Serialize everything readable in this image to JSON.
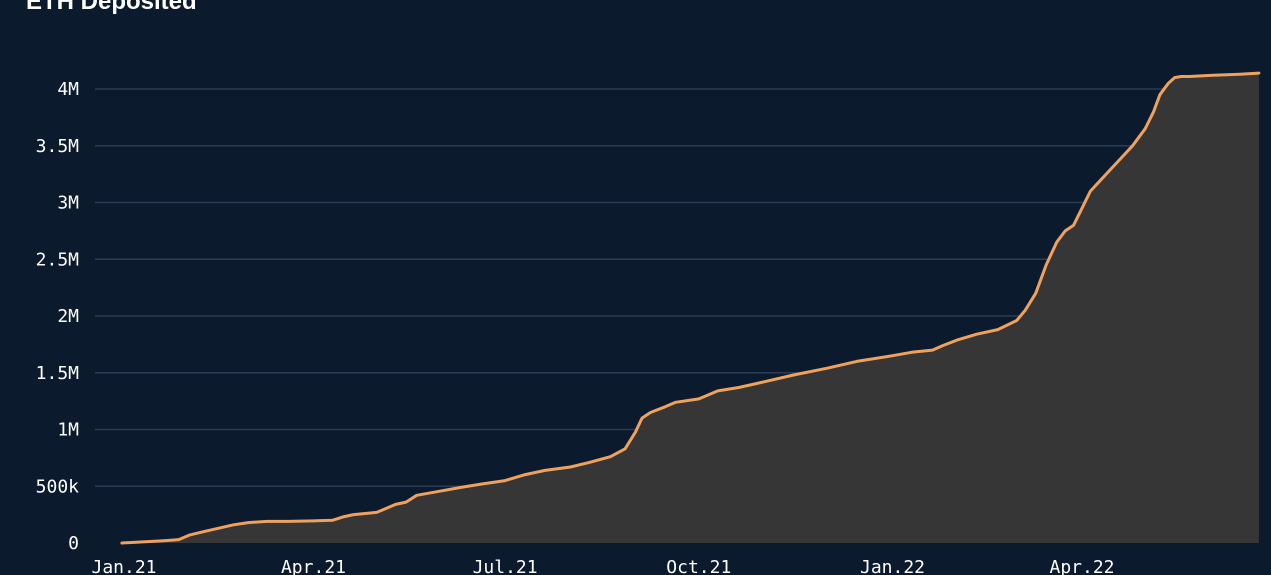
{
  "chart_data": {
    "type": "area",
    "title": "ETH Deposited",
    "xlabel": "",
    "ylabel": "",
    "ylim": [
      0,
      4000000
    ],
    "grid": true,
    "colors": {
      "background": "#0b1a2c",
      "line": "#f0a15e",
      "fill": "#363636",
      "grid": "#2a3d57",
      "text": "#ffffff"
    },
    "y_ticks": [
      {
        "value": 0,
        "label": "0"
      },
      {
        "value": 500000,
        "label": "500k"
      },
      {
        "value": 1000000,
        "label": "1M"
      },
      {
        "value": 1500000,
        "label": "1.5M"
      },
      {
        "value": 2000000,
        "label": "2M"
      },
      {
        "value": 2500000,
        "label": "2.5M"
      },
      {
        "value": 3000000,
        "label": "3M"
      },
      {
        "value": 3500000,
        "label": "3.5M"
      },
      {
        "value": 4000000,
        "label": "4M"
      }
    ],
    "x_ticks": [
      {
        "date": "2021-01-01",
        "label": "Jan.21"
      },
      {
        "date": "2021-04-01",
        "label": "Apr.21"
      },
      {
        "date": "2021-07-01",
        "label": "Jul.21"
      },
      {
        "date": "2021-10-01",
        "label": "Oct.21"
      },
      {
        "date": "2022-01-01",
        "label": "Jan.22"
      },
      {
        "date": "2022-04-01",
        "label": "Apr.22"
      }
    ],
    "series": [
      {
        "x": [
          "2020-12-31",
          "2021-01-10",
          "2021-01-20",
          "2021-01-27",
          "2021-02-01",
          "2021-02-08",
          "2021-02-15",
          "2021-02-22",
          "2021-03-01",
          "2021-03-10",
          "2021-03-20",
          "2021-04-01",
          "2021-04-10",
          "2021-04-15",
          "2021-04-20",
          "2021-05-01",
          "2021-05-10",
          "2021-05-15",
          "2021-05-20",
          "2021-06-01",
          "2021-06-10",
          "2021-06-20",
          "2021-07-01",
          "2021-07-10",
          "2021-07-20",
          "2021-08-01",
          "2021-08-10",
          "2021-08-20",
          "2021-08-27",
          "2021-09-01",
          "2021-09-04",
          "2021-09-08",
          "2021-09-15",
          "2021-09-20",
          "2021-10-01",
          "2021-10-05",
          "2021-10-10",
          "2021-10-20",
          "2021-11-01",
          "2021-11-15",
          "2021-12-01",
          "2021-12-15",
          "2022-01-01",
          "2022-01-10",
          "2022-01-20",
          "2022-01-25",
          "2022-02-01",
          "2022-02-10",
          "2022-02-20",
          "2022-03-01",
          "2022-03-05",
          "2022-03-10",
          "2022-03-15",
          "2022-03-20",
          "2022-03-22",
          "2022-03-24",
          "2022-03-28",
          "2022-04-01",
          "2022-04-05",
          "2022-04-10",
          "2022-04-15",
          "2022-04-20",
          "2022-04-25",
          "2022-05-01",
          "2022-05-05",
          "2022-05-08",
          "2022-05-12",
          "2022-05-15",
          "2022-05-18",
          "2022-05-22",
          "2022-06-01",
          "2022-06-15",
          "2022-06-24"
        ],
        "values": [
          0,
          10000,
          20000,
          30000,
          70000,
          100000,
          130000,
          160000,
          180000,
          190000,
          190000,
          195000,
          200000,
          230000,
          250000,
          270000,
          340000,
          360000,
          420000,
          460000,
          490000,
          520000,
          550000,
          600000,
          640000,
          670000,
          710000,
          760000,
          830000,
          980000,
          1100000,
          1150000,
          1200000,
          1240000,
          1270000,
          1300000,
          1340000,
          1370000,
          1420000,
          1480000,
          1540000,
          1600000,
          1650000,
          1680000,
          1700000,
          1740000,
          1790000,
          1840000,
          1880000,
          1960000,
          2050000,
          2200000,
          2450000,
          2650000,
          2700000,
          2750000,
          2800000,
          2950000,
          3100000,
          3200000,
          3300000,
          3400000,
          3500000,
          3650000,
          3800000,
          3950000,
          4050000,
          4100000,
          4110000,
          4110000,
          4120000,
          4130000,
          4140000
        ]
      }
    ]
  }
}
